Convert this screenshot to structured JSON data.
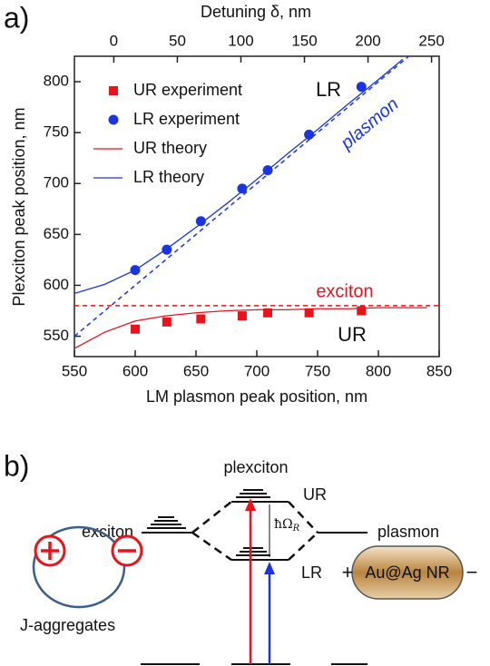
{
  "chart_data": {
    "type": "scatter",
    "panel_label": "a)",
    "xlabel": "LM plasmon peak position, nm",
    "ylabel": "Plexciton peak position, nm",
    "x2label": "Detuning δ, nm",
    "xlim": [
      550,
      850
    ],
    "xticks": [
      550,
      600,
      650,
      700,
      750,
      800,
      850
    ],
    "ylim": [
      530,
      825
    ],
    "yticks": [
      550,
      600,
      650,
      700,
      750,
      800
    ],
    "x2lim": [
      -31,
      256
    ],
    "x2ticks": [
      0,
      50,
      100,
      150,
      200,
      250
    ],
    "series": [
      {
        "name": "UR experiment",
        "color": "#e8131b",
        "marker": "square",
        "x": [
          600,
          626,
          654,
          688,
          709,
          743,
          786
        ],
        "values": [
          557,
          564,
          567,
          570,
          573,
          573,
          575
        ]
      },
      {
        "name": "LR experiment",
        "color": "#1a35e0",
        "marker": "circle",
        "x": [
          600,
          626,
          654,
          688,
          709,
          743,
          786
        ],
        "values": [
          615,
          635,
          663,
          695,
          713,
          748,
          795
        ]
      },
      {
        "name": "UR theory",
        "color": "#e8131b",
        "marker": "line",
        "x": [
          550,
          575,
          600,
          625,
          650,
          675,
          700,
          725,
          750,
          775,
          800,
          840
        ],
        "values": [
          538,
          554,
          565,
          570,
          573,
          575,
          576,
          576,
          577,
          577,
          578,
          578
        ]
      },
      {
        "name": "LR theory",
        "color": "#1a35e0",
        "marker": "line",
        "x": [
          550,
          575,
          600,
          625,
          650,
          675,
          700,
          725,
          750,
          775,
          800,
          820
        ],
        "values": [
          592,
          601,
          615,
          635,
          657,
          680,
          704,
          729,
          753,
          778,
          802,
          822
        ]
      }
    ],
    "exciton_line": {
      "value": 580,
      "color": "#e8131b"
    },
    "plasmon_line": {
      "x": [
        550,
        830
      ],
      "values": [
        550,
        830
      ],
      "color": "#1a35e0"
    },
    "annotations": [
      "LR",
      "plasmon",
      "exciton",
      "UR"
    ]
  },
  "diagram": {
    "panel_label": "b)",
    "plexciton": "plexciton",
    "UR": "UR",
    "LR": "LR",
    "exciton": "exciton",
    "plasmon": "plasmon",
    "rabi": "ħΩ",
    "rabi_sub": "R",
    "nanorod": "Au@Ag NR",
    "plus": "+",
    "minus": "−",
    "jaggregates": "J-aggregates"
  }
}
